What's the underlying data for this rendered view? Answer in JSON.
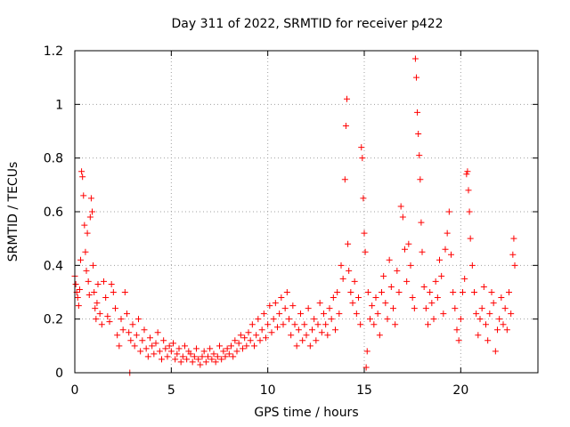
{
  "chart_data": {
    "type": "scatter",
    "title": "Day 311 of 2022, SRMTID for receiver p422",
    "xlabel": "GPS time / hours",
    "ylabel": "SRMTID / TECUs",
    "xlim": [
      0,
      24
    ],
    "ylim": [
      0,
      1.2
    ],
    "xticks": [
      0,
      5,
      10,
      15,
      20
    ],
    "xtick_labels": [
      "0",
      "5",
      "10",
      "15",
      "20"
    ],
    "yticks": [
      0,
      0.2,
      0.4,
      0.6,
      0.8,
      1.0,
      1.2
    ],
    "ytick_labels": [
      "0",
      "0.2",
      "0.4",
      "0.6",
      "0.8",
      "1",
      "1.2"
    ],
    "grid": true,
    "marker": "+",
    "color": "#ff0000",
    "series": [
      {
        "name": "SRMTID",
        "points": [
          [
            0.0,
            0.36
          ],
          [
            0.05,
            0.33
          ],
          [
            0.1,
            0.3
          ],
          [
            0.15,
            0.28
          ],
          [
            0.2,
            0.25
          ],
          [
            0.25,
            0.31
          ],
          [
            0.3,
            0.42
          ],
          [
            0.35,
            0.75
          ],
          [
            0.4,
            0.73
          ],
          [
            0.45,
            0.66
          ],
          [
            0.5,
            0.55
          ],
          [
            0.55,
            0.45
          ],
          [
            0.6,
            0.38
          ],
          [
            0.65,
            0.52
          ],
          [
            0.7,
            0.34
          ],
          [
            0.75,
            0.29
          ],
          [
            0.8,
            0.58
          ],
          [
            0.85,
            0.65
          ],
          [
            0.9,
            0.6
          ],
          [
            0.95,
            0.4
          ],
          [
            1.0,
            0.3
          ],
          [
            1.05,
            0.24
          ],
          [
            1.1,
            0.2
          ],
          [
            1.15,
            0.26
          ],
          [
            1.2,
            0.33
          ],
          [
            1.3,
            0.22
          ],
          [
            1.4,
            0.18
          ],
          [
            1.5,
            0.34
          ],
          [
            1.6,
            0.28
          ],
          [
            1.7,
            0.21
          ],
          [
            1.8,
            0.19
          ],
          [
            1.9,
            0.33
          ],
          [
            2.0,
            0.3
          ],
          [
            2.1,
            0.24
          ],
          [
            2.2,
            0.14
          ],
          [
            2.3,
            0.1
          ],
          [
            2.4,
            0.2
          ],
          [
            2.5,
            0.16
          ],
          [
            2.6,
            0.3
          ],
          [
            2.7,
            0.22
          ],
          [
            2.8,
            0.15
          ],
          [
            2.85,
            0.0
          ],
          [
            2.9,
            0.12
          ],
          [
            3.0,
            0.18
          ],
          [
            3.1,
            0.1
          ],
          [
            3.2,
            0.14
          ],
          [
            3.3,
            0.2
          ],
          [
            3.4,
            0.08
          ],
          [
            3.5,
            0.12
          ],
          [
            3.6,
            0.16
          ],
          [
            3.7,
            0.09
          ],
          [
            3.8,
            0.06
          ],
          [
            3.9,
            0.13
          ],
          [
            4.0,
            0.1
          ],
          [
            4.1,
            0.07
          ],
          [
            4.2,
            0.11
          ],
          [
            4.3,
            0.15
          ],
          [
            4.4,
            0.08
          ],
          [
            4.5,
            0.05
          ],
          [
            4.6,
            0.12
          ],
          [
            4.7,
            0.09
          ],
          [
            4.8,
            0.06
          ],
          [
            4.9,
            0.1
          ],
          [
            5.0,
            0.08
          ],
          [
            5.1,
            0.11
          ],
          [
            5.2,
            0.05
          ],
          [
            5.3,
            0.07
          ],
          [
            5.4,
            0.09
          ],
          [
            5.5,
            0.04
          ],
          [
            5.6,
            0.06
          ],
          [
            5.7,
            0.1
          ],
          [
            5.8,
            0.05
          ],
          [
            5.9,
            0.08
          ],
          [
            6.0,
            0.07
          ],
          [
            6.1,
            0.04
          ],
          [
            6.2,
            0.06
          ],
          [
            6.3,
            0.09
          ],
          [
            6.4,
            0.05
          ],
          [
            6.5,
            0.03
          ],
          [
            6.6,
            0.06
          ],
          [
            6.7,
            0.08
          ],
          [
            6.8,
            0.04
          ],
          [
            6.9,
            0.06
          ],
          [
            7.0,
            0.09
          ],
          [
            7.1,
            0.05
          ],
          [
            7.2,
            0.07
          ],
          [
            7.3,
            0.04
          ],
          [
            7.4,
            0.06
          ],
          [
            7.5,
            0.1
          ],
          [
            7.6,
            0.05
          ],
          [
            7.7,
            0.08
          ],
          [
            7.8,
            0.06
          ],
          [
            7.9,
            0.09
          ],
          [
            8.0,
            0.07
          ],
          [
            8.1,
            0.1
          ],
          [
            8.2,
            0.06
          ],
          [
            8.3,
            0.12
          ],
          [
            8.4,
            0.08
          ],
          [
            8.5,
            0.11
          ],
          [
            8.6,
            0.14
          ],
          [
            8.7,
            0.09
          ],
          [
            8.8,
            0.13
          ],
          [
            8.9,
            0.1
          ],
          [
            9.0,
            0.15
          ],
          [
            9.1,
            0.12
          ],
          [
            9.2,
            0.18
          ],
          [
            9.3,
            0.1
          ],
          [
            9.4,
            0.14
          ],
          [
            9.5,
            0.2
          ],
          [
            9.6,
            0.12
          ],
          [
            9.7,
            0.16
          ],
          [
            9.8,
            0.22
          ],
          [
            9.9,
            0.13
          ],
          [
            10.0,
            0.18
          ],
          [
            10.1,
            0.25
          ],
          [
            10.2,
            0.15
          ],
          [
            10.3,
            0.2
          ],
          [
            10.4,
            0.26
          ],
          [
            10.5,
            0.17
          ],
          [
            10.6,
            0.22
          ],
          [
            10.7,
            0.28
          ],
          [
            10.8,
            0.18
          ],
          [
            10.9,
            0.24
          ],
          [
            11.0,
            0.3
          ],
          [
            11.1,
            0.2
          ],
          [
            11.2,
            0.14
          ],
          [
            11.3,
            0.25
          ],
          [
            11.4,
            0.18
          ],
          [
            11.5,
            0.1
          ],
          [
            11.6,
            0.16
          ],
          [
            11.7,
            0.22
          ],
          [
            11.8,
            0.12
          ],
          [
            11.9,
            0.18
          ],
          [
            12.0,
            0.14
          ],
          [
            12.1,
            0.24
          ],
          [
            12.2,
            0.1
          ],
          [
            12.3,
            0.16
          ],
          [
            12.4,
            0.2
          ],
          [
            12.5,
            0.12
          ],
          [
            12.6,
            0.18
          ],
          [
            12.7,
            0.26
          ],
          [
            12.8,
            0.15
          ],
          [
            12.9,
            0.22
          ],
          [
            13.0,
            0.18
          ],
          [
            13.1,
            0.14
          ],
          [
            13.2,
            0.24
          ],
          [
            13.3,
            0.2
          ],
          [
            13.4,
            0.28
          ],
          [
            13.5,
            0.16
          ],
          [
            13.6,
            0.3
          ],
          [
            13.7,
            0.22
          ],
          [
            13.8,
            0.4
          ],
          [
            13.9,
            0.35
          ],
          [
            14.0,
            0.72
          ],
          [
            14.05,
            0.92
          ],
          [
            14.1,
            1.02
          ],
          [
            14.15,
            0.48
          ],
          [
            14.2,
            0.38
          ],
          [
            14.3,
            0.3
          ],
          [
            14.4,
            0.26
          ],
          [
            14.5,
            0.34
          ],
          [
            14.6,
            0.22
          ],
          [
            14.7,
            0.28
          ],
          [
            14.8,
            0.18
          ],
          [
            14.85,
            0.84
          ],
          [
            14.9,
            0.8
          ],
          [
            14.95,
            0.65
          ],
          [
            15.0,
            0.52
          ],
          [
            15.05,
            0.45
          ],
          [
            15.1,
            0.02
          ],
          [
            15.15,
            0.08
          ],
          [
            15.2,
            0.3
          ],
          [
            15.3,
            0.2
          ],
          [
            15.4,
            0.25
          ],
          [
            15.5,
            0.18
          ],
          [
            15.6,
            0.28
          ],
          [
            15.7,
            0.22
          ],
          [
            15.8,
            0.14
          ],
          [
            15.9,
            0.3
          ],
          [
            16.0,
            0.36
          ],
          [
            16.1,
            0.26
          ],
          [
            16.2,
            0.2
          ],
          [
            16.3,
            0.42
          ],
          [
            16.4,
            0.32
          ],
          [
            16.5,
            0.24
          ],
          [
            16.6,
            0.18
          ],
          [
            16.7,
            0.38
          ],
          [
            16.8,
            0.3
          ],
          [
            16.9,
            0.62
          ],
          [
            17.0,
            0.58
          ],
          [
            17.1,
            0.46
          ],
          [
            17.2,
            0.34
          ],
          [
            17.3,
            0.48
          ],
          [
            17.4,
            0.4
          ],
          [
            17.5,
            0.28
          ],
          [
            17.6,
            0.24
          ],
          [
            17.65,
            1.17
          ],
          [
            17.7,
            1.1
          ],
          [
            17.75,
            0.97
          ],
          [
            17.8,
            0.89
          ],
          [
            17.85,
            0.81
          ],
          [
            17.9,
            0.72
          ],
          [
            17.95,
            0.56
          ],
          [
            18.0,
            0.45
          ],
          [
            18.1,
            0.32
          ],
          [
            18.2,
            0.24
          ],
          [
            18.3,
            0.18
          ],
          [
            18.4,
            0.3
          ],
          [
            18.5,
            0.26
          ],
          [
            18.6,
            0.2
          ],
          [
            18.7,
            0.34
          ],
          [
            18.8,
            0.28
          ],
          [
            18.9,
            0.42
          ],
          [
            19.0,
            0.36
          ],
          [
            19.1,
            0.22
          ],
          [
            19.2,
            0.46
          ],
          [
            19.3,
            0.52
          ],
          [
            19.4,
            0.6
          ],
          [
            19.5,
            0.44
          ],
          [
            19.6,
            0.3
          ],
          [
            19.7,
            0.24
          ],
          [
            19.8,
            0.16
          ],
          [
            19.9,
            0.12
          ],
          [
            20.0,
            0.2
          ],
          [
            20.1,
            0.3
          ],
          [
            20.2,
            0.35
          ],
          [
            20.3,
            0.74
          ],
          [
            20.35,
            0.75
          ],
          [
            20.4,
            0.68
          ],
          [
            20.45,
            0.6
          ],
          [
            20.5,
            0.5
          ],
          [
            20.6,
            0.4
          ],
          [
            20.7,
            0.3
          ],
          [
            20.8,
            0.22
          ],
          [
            20.9,
            0.14
          ],
          [
            21.0,
            0.2
          ],
          [
            21.1,
            0.24
          ],
          [
            21.2,
            0.32
          ],
          [
            21.3,
            0.18
          ],
          [
            21.4,
            0.12
          ],
          [
            21.5,
            0.22
          ],
          [
            21.6,
            0.3
          ],
          [
            21.7,
            0.26
          ],
          [
            21.8,
            0.08
          ],
          [
            21.9,
            0.16
          ],
          [
            22.0,
            0.2
          ],
          [
            22.1,
            0.28
          ],
          [
            22.2,
            0.18
          ],
          [
            22.3,
            0.24
          ],
          [
            22.4,
            0.16
          ],
          [
            22.5,
            0.3
          ],
          [
            22.6,
            0.22
          ],
          [
            22.7,
            0.44
          ],
          [
            22.75,
            0.5
          ],
          [
            22.8,
            0.4
          ]
        ]
      }
    ]
  }
}
